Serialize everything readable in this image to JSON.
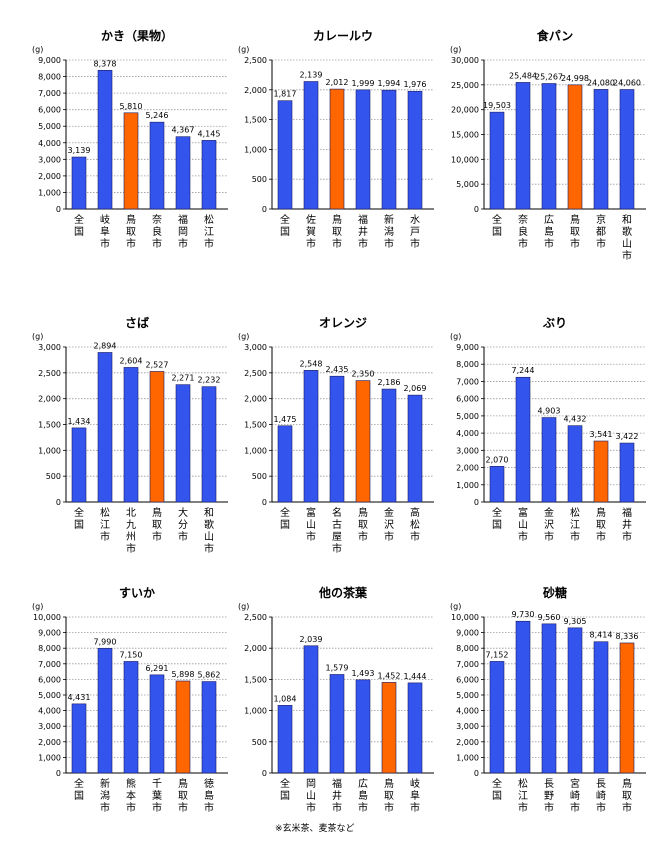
{
  "colors": {
    "bar": "#3355ee",
    "highlight": "#ff6600",
    "grid": "#999999",
    "text": "#000000"
  },
  "chart_data": [
    {
      "type": "bar",
      "title": "かき（果物）",
      "ylabel": "(g)",
      "ylim": [
        0,
        9000
      ],
      "ystep": 1000,
      "categories": [
        "全国",
        "岐阜市",
        "鳥取市",
        "奈良市",
        "福岡市",
        "松江市"
      ],
      "values": [
        3139,
        8378,
        5810,
        5246,
        4367,
        4145
      ],
      "data_labels": [
        "3,139",
        "8,378",
        "5,810",
        "5,246",
        "4,367",
        "4,145"
      ],
      "highlight_index": 2
    },
    {
      "type": "bar",
      "title": "カレールウ",
      "ylabel": "(g)",
      "ylim": [
        0,
        2500
      ],
      "ystep": 500,
      "categories": [
        "全国",
        "佐賀市",
        "鳥取市",
        "福井市",
        "新潟市",
        "水戸市"
      ],
      "values": [
        1817,
        2139,
        2012,
        1999,
        1994,
        1976
      ],
      "data_labels": [
        "1,817",
        "2,139",
        "2,012",
        "1,999",
        "1,994",
        "1,976"
      ],
      "highlight_index": 2
    },
    {
      "type": "bar",
      "title": "食パン",
      "ylabel": "(g)",
      "ylim": [
        0,
        30000
      ],
      "ystep": 5000,
      "categories": [
        "全国",
        "奈良市",
        "広島市",
        "鳥取市",
        "京都市",
        "和歌山市"
      ],
      "values": [
        19503,
        25484,
        25267,
        24998,
        24080,
        24060
      ],
      "data_labels": [
        "19,503",
        "25,484",
        "25,267",
        "24,998",
        "24,080",
        "24,060"
      ],
      "highlight_index": 3
    },
    {
      "type": "bar",
      "title": "さば",
      "ylabel": "(g)",
      "ylim": [
        0,
        3000
      ],
      "ystep": 500,
      "categories": [
        "全国",
        "松江市",
        "北九州市",
        "鳥取市",
        "大分市",
        "和歌山市"
      ],
      "values": [
        1434,
        2894,
        2604,
        2527,
        2271,
        2232
      ],
      "data_labels": [
        "1,434",
        "2,894",
        "2,604",
        "2,527",
        "2,271",
        "2,232"
      ],
      "highlight_index": 3
    },
    {
      "type": "bar",
      "title": "オレンジ",
      "ylabel": "(g)",
      "ylim": [
        0,
        3000
      ],
      "ystep": 500,
      "categories": [
        "全国",
        "富山市",
        "名古屋市",
        "鳥取市",
        "金沢市",
        "高松市"
      ],
      "values": [
        1475,
        2548,
        2435,
        2350,
        2186,
        2069
      ],
      "data_labels": [
        "1,475",
        "2,548",
        "2,435",
        "2,350",
        "2,186",
        "2,069"
      ],
      "highlight_index": 3
    },
    {
      "type": "bar",
      "title": "ぶり",
      "ylabel": "(g)",
      "ylim": [
        0,
        9000
      ],
      "ystep": 1000,
      "categories": [
        "全国",
        "富山市",
        "金沢市",
        "松江市",
        "鳥取市",
        "福井市"
      ],
      "values": [
        2070,
        7244,
        4903,
        4432,
        3541,
        3422
      ],
      "data_labels": [
        "2,070",
        "7,244",
        "4,903",
        "4,432",
        "3,541",
        "3,422"
      ],
      "highlight_index": 4
    },
    {
      "type": "bar",
      "title": "すいか",
      "ylabel": "(g)",
      "ylim": [
        0,
        10000
      ],
      "ystep": 1000,
      "categories": [
        "全国",
        "新潟市",
        "熊本市",
        "千葉市",
        "鳥取市",
        "徳島市"
      ],
      "values": [
        4431,
        7990,
        7150,
        6291,
        5898,
        5862
      ],
      "data_labels": [
        "4,431",
        "7,990",
        "7,150",
        "6,291",
        "5,898",
        "5,862"
      ],
      "highlight_index": 4
    },
    {
      "type": "bar",
      "title": "他の茶葉",
      "ylabel": "(g)",
      "ylim": [
        0,
        2500
      ],
      "ystep": 500,
      "categories": [
        "全国",
        "岡山市",
        "福井市",
        "広島市",
        "鳥取市",
        "岐阜市"
      ],
      "values": [
        1084,
        2039,
        1579,
        1493,
        1452,
        1444
      ],
      "data_labels": [
        "1,084",
        "2,039",
        "1,579",
        "1,493",
        "1,452",
        "1,444"
      ],
      "highlight_index": 4
    },
    {
      "type": "bar",
      "title": "砂糖",
      "ylabel": "(g)",
      "ylim": [
        0,
        10000
      ],
      "ystep": 1000,
      "categories": [
        "全国",
        "松江市",
        "長野市",
        "宮崎市",
        "長崎市",
        "鳥取市"
      ],
      "values": [
        7152,
        9730,
        9560,
        9305,
        8414,
        8336
      ],
      "data_labels": [
        "7,152",
        "9,730",
        "9,560",
        "9,305",
        "8,414",
        "8,336"
      ],
      "highlight_index": 5
    }
  ],
  "footnote": "※玄米茶、麦茶など"
}
